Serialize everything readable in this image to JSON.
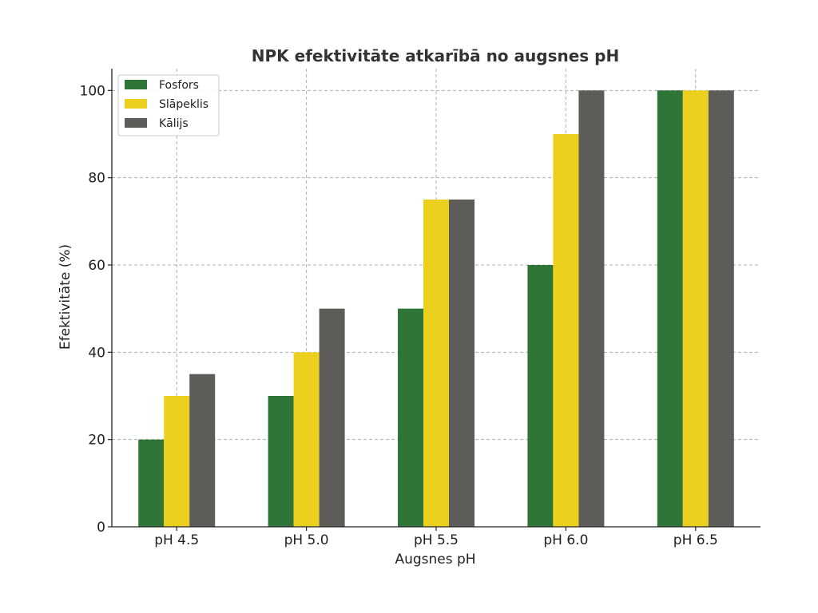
{
  "chart_data": {
    "type": "bar",
    "title": "NPK efektivitāte atkarībā no augsnes pH",
    "xlabel": "Augsnes pH",
    "ylabel": "Efektivitāte (%)",
    "categories": [
      "pH 4.5",
      "pH 5.0",
      "pH 5.5",
      "pH 6.0",
      "pH 6.5"
    ],
    "series": [
      {
        "name": "Fosfors",
        "color": "#2e7537",
        "values": [
          20,
          30,
          50,
          60,
          100
        ]
      },
      {
        "name": "Slāpeklis",
        "color": "#ebd11e",
        "values": [
          30,
          40,
          75,
          90,
          100
        ]
      },
      {
        "name": "Kālijs",
        "color": "#5e5c58",
        "values": [
          35,
          50,
          75,
          100,
          100
        ]
      }
    ],
    "ylim": [
      0,
      105
    ],
    "yticks": [
      0,
      20,
      40,
      60,
      80,
      100
    ],
    "grid": true,
    "legend_position": "top-left"
  }
}
